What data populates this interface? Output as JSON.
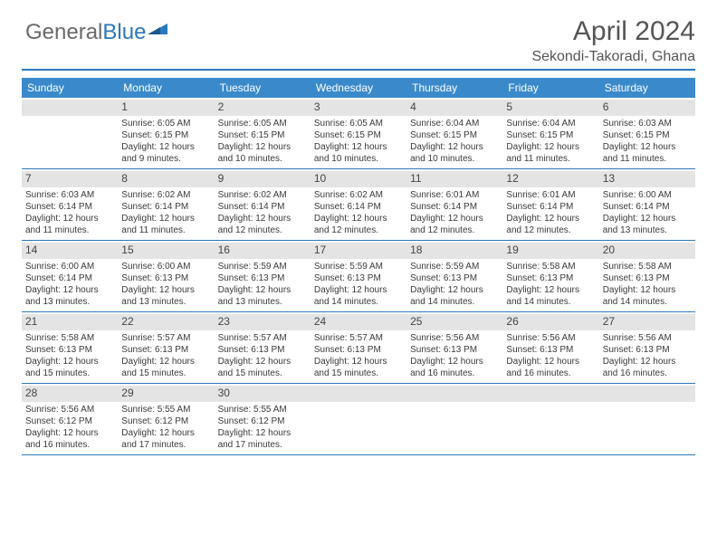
{
  "brand": {
    "part1": "General",
    "part2": "Blue"
  },
  "title": "April 2024",
  "subtitle": "Sekondi-Takoradi, Ghana",
  "colors": {
    "header_bg": "#3a8acb",
    "rule": "#2b78bd",
    "daynum_bg": "#e4e4e4",
    "text": "#3a3a3a"
  },
  "weekdays": [
    "Sunday",
    "Monday",
    "Tuesday",
    "Wednesday",
    "Thursday",
    "Friday",
    "Saturday"
  ],
  "weeks": [
    [
      {
        "n": "",
        "sr": "",
        "ss": "",
        "d1": "",
        "d2": ""
      },
      {
        "n": "1",
        "sr": "Sunrise: 6:05 AM",
        "ss": "Sunset: 6:15 PM",
        "d1": "Daylight: 12 hours",
        "d2": "and 9 minutes."
      },
      {
        "n": "2",
        "sr": "Sunrise: 6:05 AM",
        "ss": "Sunset: 6:15 PM",
        "d1": "Daylight: 12 hours",
        "d2": "and 10 minutes."
      },
      {
        "n": "3",
        "sr": "Sunrise: 6:05 AM",
        "ss": "Sunset: 6:15 PM",
        "d1": "Daylight: 12 hours",
        "d2": "and 10 minutes."
      },
      {
        "n": "4",
        "sr": "Sunrise: 6:04 AM",
        "ss": "Sunset: 6:15 PM",
        "d1": "Daylight: 12 hours",
        "d2": "and 10 minutes."
      },
      {
        "n": "5",
        "sr": "Sunrise: 6:04 AM",
        "ss": "Sunset: 6:15 PM",
        "d1": "Daylight: 12 hours",
        "d2": "and 11 minutes."
      },
      {
        "n": "6",
        "sr": "Sunrise: 6:03 AM",
        "ss": "Sunset: 6:15 PM",
        "d1": "Daylight: 12 hours",
        "d2": "and 11 minutes."
      }
    ],
    [
      {
        "n": "7",
        "sr": "Sunrise: 6:03 AM",
        "ss": "Sunset: 6:14 PM",
        "d1": "Daylight: 12 hours",
        "d2": "and 11 minutes."
      },
      {
        "n": "8",
        "sr": "Sunrise: 6:02 AM",
        "ss": "Sunset: 6:14 PM",
        "d1": "Daylight: 12 hours",
        "d2": "and 11 minutes."
      },
      {
        "n": "9",
        "sr": "Sunrise: 6:02 AM",
        "ss": "Sunset: 6:14 PM",
        "d1": "Daylight: 12 hours",
        "d2": "and 12 minutes."
      },
      {
        "n": "10",
        "sr": "Sunrise: 6:02 AM",
        "ss": "Sunset: 6:14 PM",
        "d1": "Daylight: 12 hours",
        "d2": "and 12 minutes."
      },
      {
        "n": "11",
        "sr": "Sunrise: 6:01 AM",
        "ss": "Sunset: 6:14 PM",
        "d1": "Daylight: 12 hours",
        "d2": "and 12 minutes."
      },
      {
        "n": "12",
        "sr": "Sunrise: 6:01 AM",
        "ss": "Sunset: 6:14 PM",
        "d1": "Daylight: 12 hours",
        "d2": "and 12 minutes."
      },
      {
        "n": "13",
        "sr": "Sunrise: 6:00 AM",
        "ss": "Sunset: 6:14 PM",
        "d1": "Daylight: 12 hours",
        "d2": "and 13 minutes."
      }
    ],
    [
      {
        "n": "14",
        "sr": "Sunrise: 6:00 AM",
        "ss": "Sunset: 6:14 PM",
        "d1": "Daylight: 12 hours",
        "d2": "and 13 minutes."
      },
      {
        "n": "15",
        "sr": "Sunrise: 6:00 AM",
        "ss": "Sunset: 6:13 PM",
        "d1": "Daylight: 12 hours",
        "d2": "and 13 minutes."
      },
      {
        "n": "16",
        "sr": "Sunrise: 5:59 AM",
        "ss": "Sunset: 6:13 PM",
        "d1": "Daylight: 12 hours",
        "d2": "and 13 minutes."
      },
      {
        "n": "17",
        "sr": "Sunrise: 5:59 AM",
        "ss": "Sunset: 6:13 PM",
        "d1": "Daylight: 12 hours",
        "d2": "and 14 minutes."
      },
      {
        "n": "18",
        "sr": "Sunrise: 5:59 AM",
        "ss": "Sunset: 6:13 PM",
        "d1": "Daylight: 12 hours",
        "d2": "and 14 minutes."
      },
      {
        "n": "19",
        "sr": "Sunrise: 5:58 AM",
        "ss": "Sunset: 6:13 PM",
        "d1": "Daylight: 12 hours",
        "d2": "and 14 minutes."
      },
      {
        "n": "20",
        "sr": "Sunrise: 5:58 AM",
        "ss": "Sunset: 6:13 PM",
        "d1": "Daylight: 12 hours",
        "d2": "and 14 minutes."
      }
    ],
    [
      {
        "n": "21",
        "sr": "Sunrise: 5:58 AM",
        "ss": "Sunset: 6:13 PM",
        "d1": "Daylight: 12 hours",
        "d2": "and 15 minutes."
      },
      {
        "n": "22",
        "sr": "Sunrise: 5:57 AM",
        "ss": "Sunset: 6:13 PM",
        "d1": "Daylight: 12 hours",
        "d2": "and 15 minutes."
      },
      {
        "n": "23",
        "sr": "Sunrise: 5:57 AM",
        "ss": "Sunset: 6:13 PM",
        "d1": "Daylight: 12 hours",
        "d2": "and 15 minutes."
      },
      {
        "n": "24",
        "sr": "Sunrise: 5:57 AM",
        "ss": "Sunset: 6:13 PM",
        "d1": "Daylight: 12 hours",
        "d2": "and 15 minutes."
      },
      {
        "n": "25",
        "sr": "Sunrise: 5:56 AM",
        "ss": "Sunset: 6:13 PM",
        "d1": "Daylight: 12 hours",
        "d2": "and 16 minutes."
      },
      {
        "n": "26",
        "sr": "Sunrise: 5:56 AM",
        "ss": "Sunset: 6:13 PM",
        "d1": "Daylight: 12 hours",
        "d2": "and 16 minutes."
      },
      {
        "n": "27",
        "sr": "Sunrise: 5:56 AM",
        "ss": "Sunset: 6:13 PM",
        "d1": "Daylight: 12 hours",
        "d2": "and 16 minutes."
      }
    ],
    [
      {
        "n": "28",
        "sr": "Sunrise: 5:56 AM",
        "ss": "Sunset: 6:12 PM",
        "d1": "Daylight: 12 hours",
        "d2": "and 16 minutes."
      },
      {
        "n": "29",
        "sr": "Sunrise: 5:55 AM",
        "ss": "Sunset: 6:12 PM",
        "d1": "Daylight: 12 hours",
        "d2": "and 17 minutes."
      },
      {
        "n": "30",
        "sr": "Sunrise: 5:55 AM",
        "ss": "Sunset: 6:12 PM",
        "d1": "Daylight: 12 hours",
        "d2": "and 17 minutes."
      },
      {
        "n": "",
        "sr": "",
        "ss": "",
        "d1": "",
        "d2": ""
      },
      {
        "n": "",
        "sr": "",
        "ss": "",
        "d1": "",
        "d2": ""
      },
      {
        "n": "",
        "sr": "",
        "ss": "",
        "d1": "",
        "d2": ""
      },
      {
        "n": "",
        "sr": "",
        "ss": "",
        "d1": "",
        "d2": ""
      }
    ]
  ]
}
